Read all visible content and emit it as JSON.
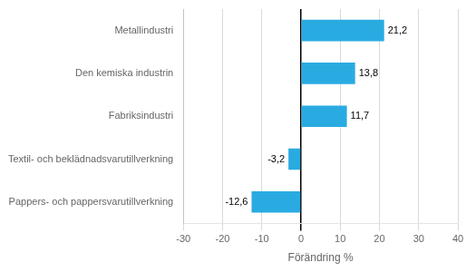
{
  "chart_data": {
    "type": "bar",
    "orientation": "horizontal",
    "categories": [
      "Pappers- och pappersvarutillverkning",
      "Textil- och beklädnadsvarutillverkning",
      "Fabriksindustri",
      "Den kemiska industrin",
      "Metallindustri"
    ],
    "values": [
      -12.6,
      -3.2,
      11.7,
      13.8,
      21.2
    ],
    "value_labels": [
      "-12,6",
      "-3,2",
      "11,7",
      "13,8",
      "21,2"
    ],
    "data_labels": true,
    "color": "#29abe2",
    "xlabel": "Förändring %",
    "xlim": [
      -30,
      40
    ],
    "xticks": [
      -30,
      -20,
      -10,
      0,
      10,
      20,
      30,
      40
    ],
    "grid": true
  }
}
